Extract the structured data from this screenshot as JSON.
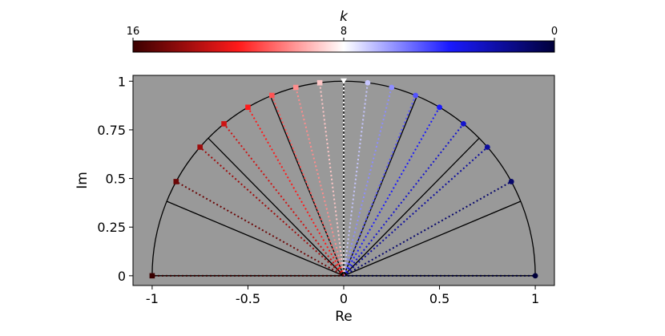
{
  "chart_data": {
    "type": "scatter",
    "title": "",
    "xlabel": "Re",
    "ylabel": "Im",
    "xlim": [
      -1.1,
      1.1
    ],
    "ylim": [
      -0.05,
      1.03
    ],
    "x_ticks": [
      "-1",
      "-0.5",
      "0",
      "0.5",
      "1"
    ],
    "y_ticks": [
      "0",
      "0.25",
      "0.5",
      "0.75",
      "1"
    ],
    "x_tick_values": [
      -1,
      -0.5,
      0,
      0.5,
      1
    ],
    "y_tick_values": [
      0,
      0.25,
      0.5,
      0.75,
      1
    ],
    "background_color": "#999999",
    "grid": false,
    "unit_semicircle": true,
    "solid_ray_angles_deg": [
      0,
      22.5,
      45,
      67.5,
      90,
      112.5,
      135,
      157.5,
      180
    ],
    "colorbar": {
      "label": "k",
      "ticks": [
        "16",
        "8",
        "0"
      ],
      "tick_values": [
        16,
        8,
        0
      ],
      "range": [
        16,
        0
      ],
      "colormap": "seismic",
      "colors": [
        "#3a0000",
        "#ff1a1a",
        "#ffffff",
        "#1a1aff",
        "#00003a"
      ]
    },
    "series": [
      {
        "marker": "circle",
        "k": [
          0,
          1,
          2,
          3,
          4,
          5,
          6,
          7,
          8
        ],
        "points": [
          {
            "k": 0,
            "x": 1.0,
            "y": 0.0
          },
          {
            "k": 1,
            "x": 0.875,
            "y": 0.484
          },
          {
            "k": 2,
            "x": 0.75,
            "y": 0.661
          },
          {
            "k": 3,
            "x": 0.625,
            "y": 0.781
          },
          {
            "k": 4,
            "x": 0.5,
            "y": 0.866
          },
          {
            "k": 5,
            "x": 0.375,
            "y": 0.927
          },
          {
            "k": 6,
            "x": 0.25,
            "y": 0.968
          },
          {
            "k": 7,
            "x": 0.125,
            "y": 0.992
          },
          {
            "k": 8,
            "x": 0.0,
            "y": 1.0
          }
        ]
      },
      {
        "marker": "square",
        "k": [
          9,
          10,
          11,
          12,
          13,
          14,
          15,
          16
        ],
        "points": [
          {
            "k": 9,
            "x": -0.125,
            "y": 0.992
          },
          {
            "k": 10,
            "x": -0.25,
            "y": 0.968
          },
          {
            "k": 11,
            "x": -0.375,
            "y": 0.927
          },
          {
            "k": 12,
            "x": -0.5,
            "y": 0.866
          },
          {
            "k": 13,
            "x": -0.625,
            "y": 0.781
          },
          {
            "k": 14,
            "x": -0.75,
            "y": 0.661
          },
          {
            "k": 15,
            "x": -0.875,
            "y": 0.484
          },
          {
            "k": 16,
            "x": -1.0,
            "y": 0.0
          }
        ]
      }
    ],
    "special_markers": [
      {
        "k": 8,
        "marker": "triangle-down",
        "x": 0.0,
        "y": 1.0
      }
    ]
  }
}
